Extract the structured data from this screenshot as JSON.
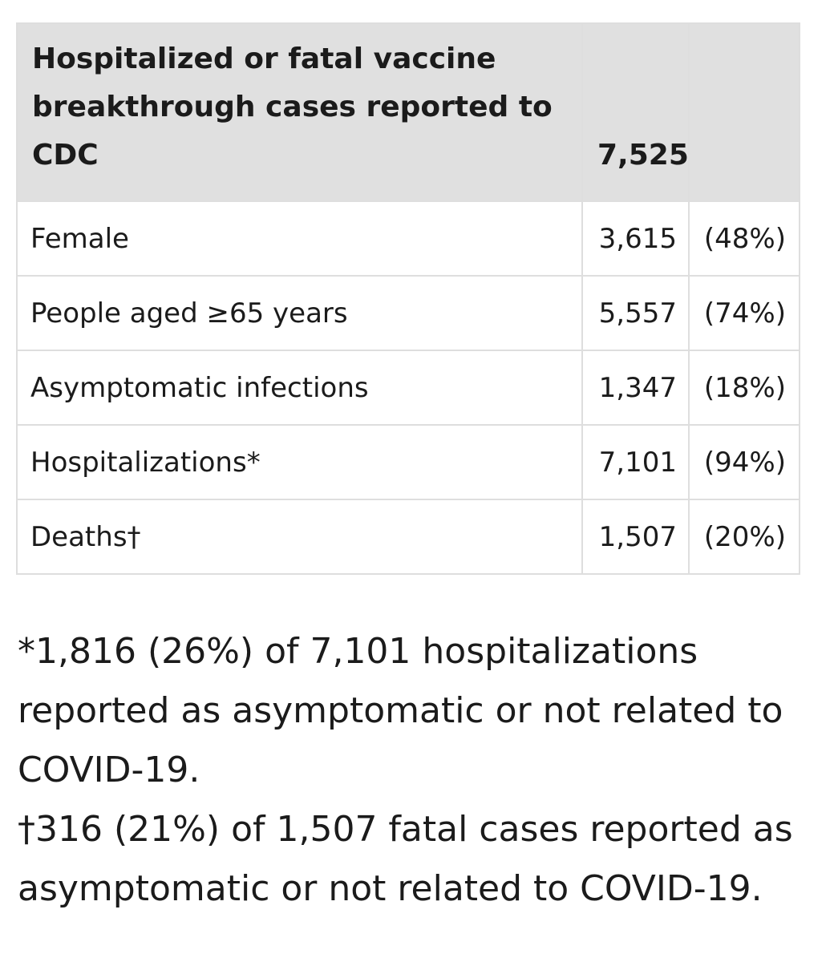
{
  "table": {
    "header": {
      "title": "Hospitalized or fatal vaccine breakthrough cases reported to CDC",
      "total": "7,525"
    },
    "rows": [
      {
        "label": "Female",
        "count": "3,615",
        "percent": "(48%)"
      },
      {
        "label": "People aged ≥65 years",
        "count": "5,557",
        "percent": "(74%)"
      },
      {
        "label": "Asymptomatic infections",
        "count": "1,347",
        "percent": "(18%)"
      },
      {
        "label": "Hospitalizations*",
        "count": "7,101",
        "percent": "(94%)"
      },
      {
        "label": "Deaths†",
        "count": "1,507",
        "percent": "(20%)"
      }
    ]
  },
  "footnotes": {
    "hospitalizations": "*1,816 (26%) of 7,101 hospitalizations reported as asymptomatic or not related to COVID-19.",
    "deaths": "†316 (21%) of 1,507 fatal cases reported as asymptomatic or not related to COVID-19."
  }
}
